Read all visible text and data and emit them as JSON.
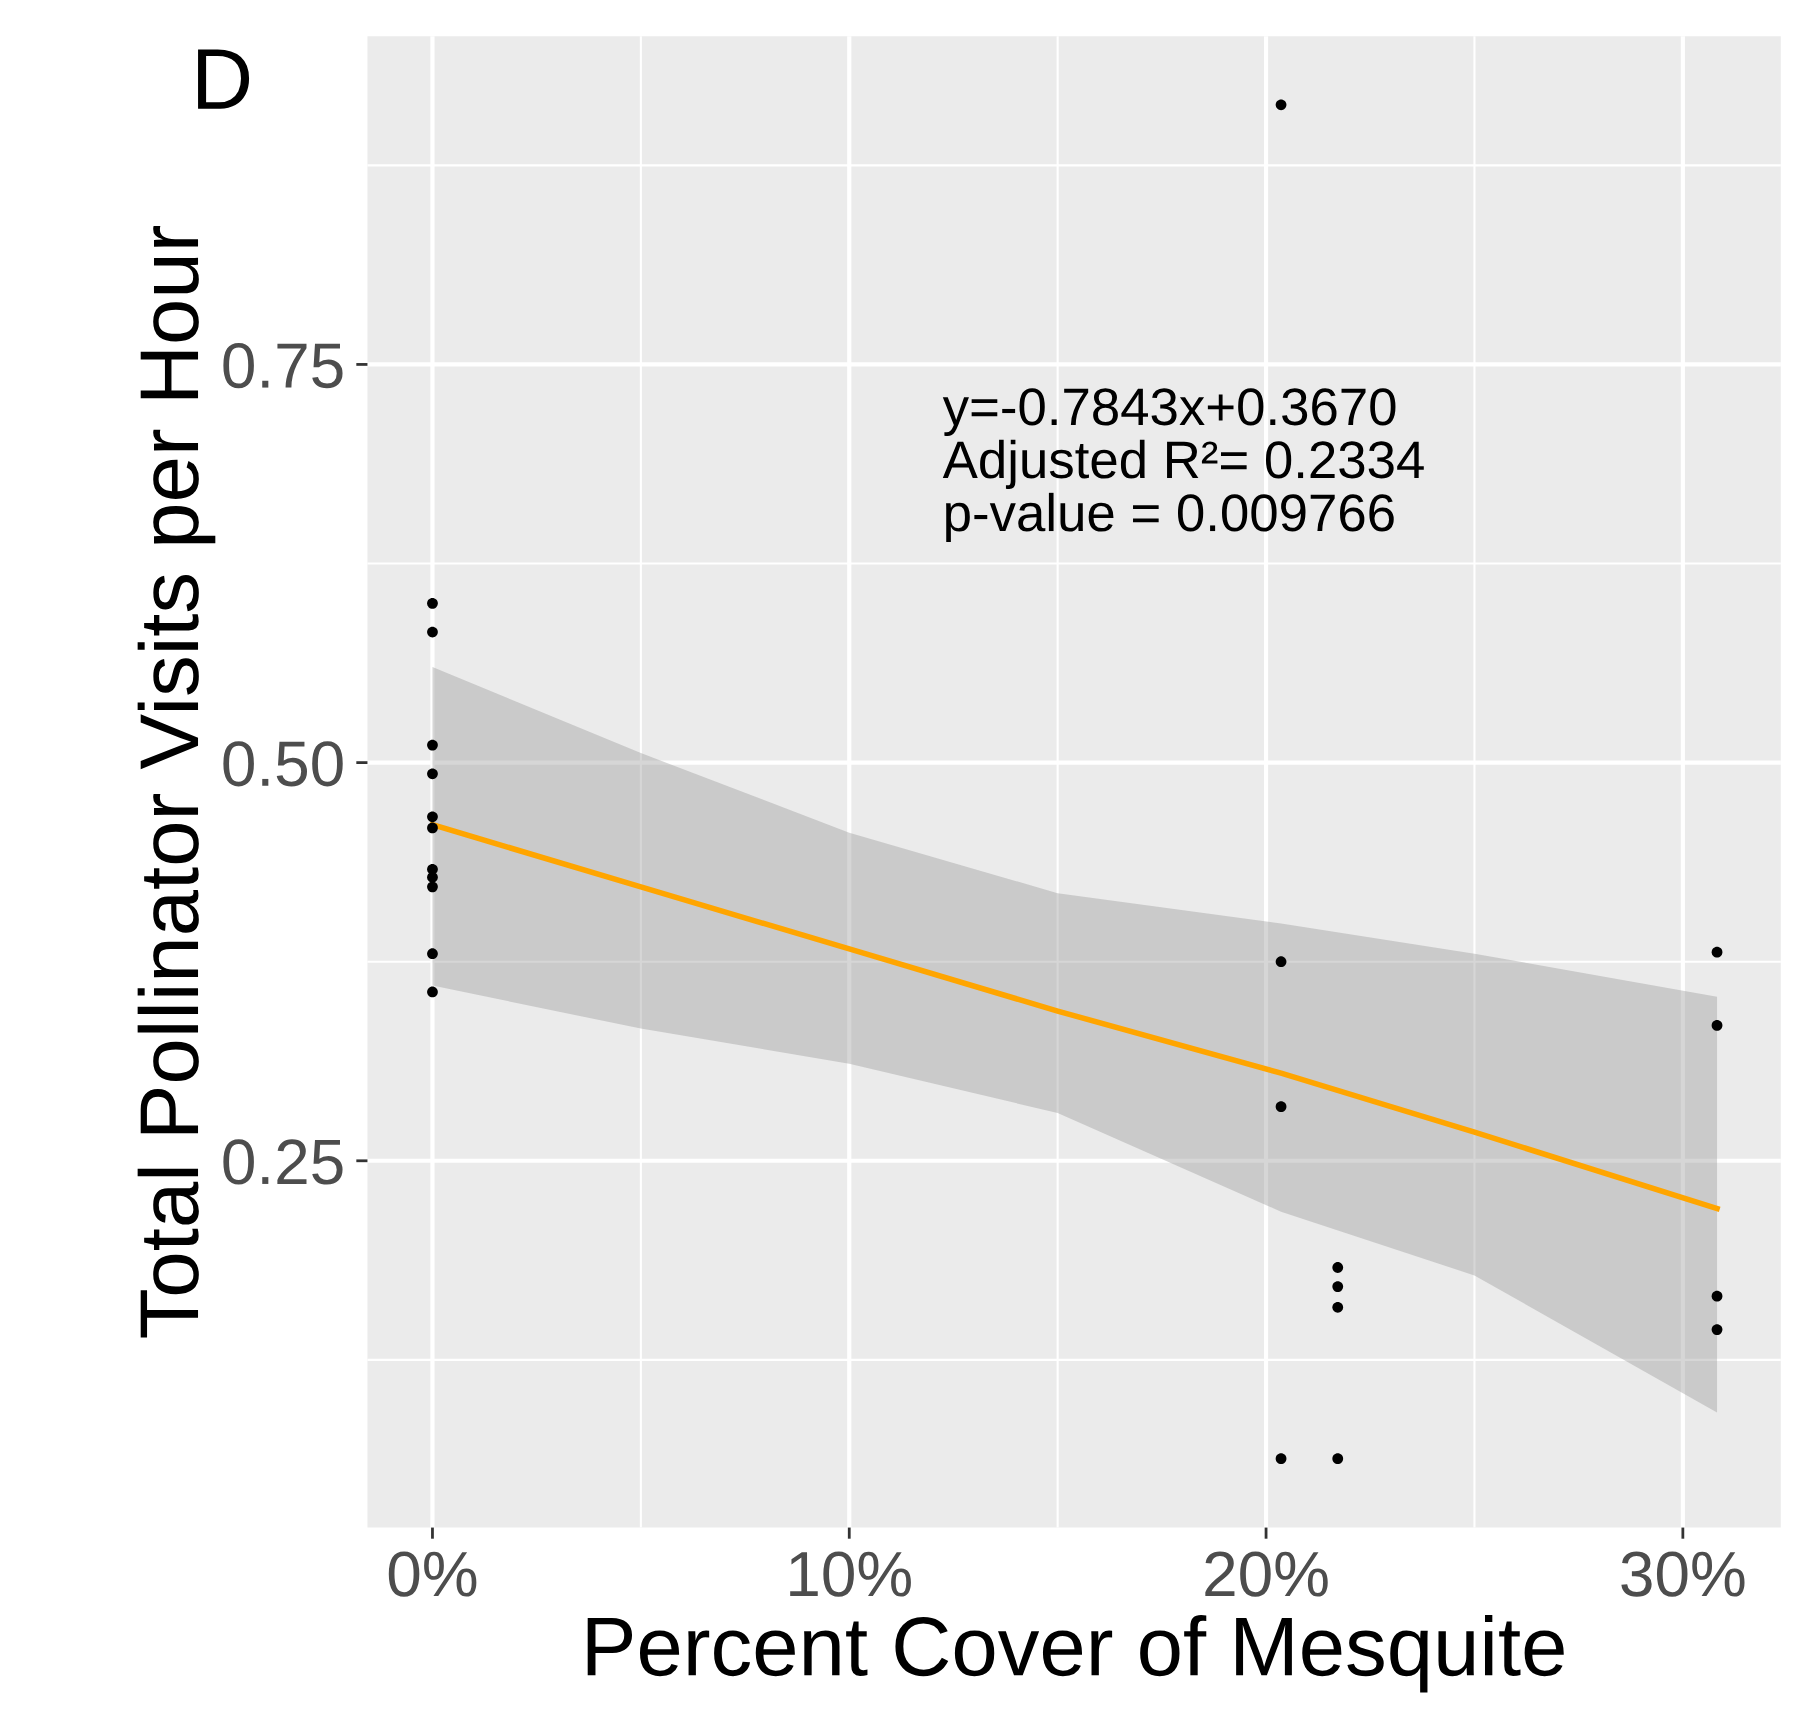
{
  "chart_data": {
    "type": "scatter",
    "xlabel": "Percent Cover of Mesquite",
    "ylabel": "Total Pollinator Visits per Hour",
    "annotations": [
      "D",
      "y=-0.7843x+0.3670\nAdjusted R²= 0.2334\np-value = 0.009766"
    ],
    "xlim": [
      -0.0156,
      0.3235
    ],
    "ylim": [
      0.0197,
      0.956
    ],
    "xticks": [
      {
        "value": 0,
        "label": "0%"
      },
      {
        "value": 0.1,
        "label": "10%"
      },
      {
        "value": 0.2,
        "label": "20%"
      },
      {
        "value": 0.3,
        "label": "30%"
      }
    ],
    "yticks": [
      {
        "value": 0.25,
        "label": "0.25"
      },
      {
        "value": 0.5,
        "label": "0.50"
      },
      {
        "value": 0.75,
        "label": "0.75"
      }
    ],
    "grid": true,
    "series": [
      {
        "marker": "circle",
        "color": "#000000",
        "x": [
          0,
          0,
          0,
          0,
          0,
          0,
          0,
          0,
          0,
          0,
          0,
          0.2036,
          0.2036,
          0.2036,
          0.2036,
          0.2172,
          0.2172,
          0.2172,
          0.2172,
          0.3082,
          0.3082,
          0.3082,
          0.3082
        ],
        "values": [
          0.6,
          0.582,
          0.511,
          0.493,
          0.466,
          0.459,
          0.433,
          0.428,
          0.422,
          0.38,
          0.356,
          0.913,
          0.375,
          0.284,
          0.063,
          0.183,
          0.171,
          0.158,
          0.063,
          0.381,
          0.335,
          0.165,
          0.144
        ]
      },
      {
        "type": "line",
        "marker": "none",
        "color": "#ffa500",
        "x": [
          0,
          0.05,
          0.1,
          0.15,
          0.2036,
          0.25,
          0.3082
        ],
        "values": [
          0.461,
          0.422,
          0.383,
          0.344,
          0.305,
          0.268,
          0.22
        ],
        "lower": [
          0.36,
          0.333,
          0.311,
          0.28,
          0.218,
          0.178,
          0.092
        ],
        "upper": [
          0.56,
          0.506,
          0.456,
          0.418,
          0.399,
          0.38,
          0.353
        ]
      }
    ]
  }
}
